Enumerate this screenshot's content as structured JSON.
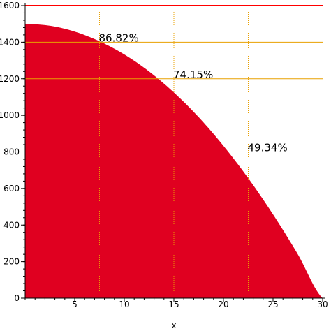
{
  "chart_data": {
    "type": "area",
    "title": "",
    "xlabel": "x",
    "ylabel": "",
    "xlim": [
      0,
      30
    ],
    "ylim": [
      0,
      1600
    ],
    "x_ticks": [
      5,
      10,
      15,
      20,
      25,
      30
    ],
    "y_ticks": [
      0,
      200,
      400,
      600,
      800,
      1000,
      1200,
      1400,
      1600
    ],
    "x_tick_labels": [
      "5",
      "10",
      "15",
      "20",
      "25",
      "30"
    ],
    "y_tick_labels": [
      "0",
      "200",
      "400",
      "600",
      "800",
      "1000",
      "1200",
      "1400",
      "1600"
    ],
    "x": [
      0,
      2.5,
      5,
      7.5,
      10,
      12.5,
      15,
      17.5,
      20,
      22.5,
      25,
      27.5,
      30
    ],
    "series": [
      {
        "values": [
          1500,
          1490,
          1458,
          1405,
          1333,
          1240,
          1125,
          990,
          833,
          656,
          458,
          240,
          0
        ],
        "color": "#e00020"
      }
    ],
    "reference_line": {
      "y": 1600,
      "color": "#ff0000"
    },
    "annotations": [
      {
        "x": 7.5,
        "y": 1400,
        "label": "86.82%"
      },
      {
        "x": 15,
        "y": 1200,
        "label": "74.15%"
      },
      {
        "x": 22.5,
        "y": 800,
        "label": "49.34%"
      }
    ],
    "guide_color": "#e8a000",
    "grid": false,
    "legend": "none"
  }
}
